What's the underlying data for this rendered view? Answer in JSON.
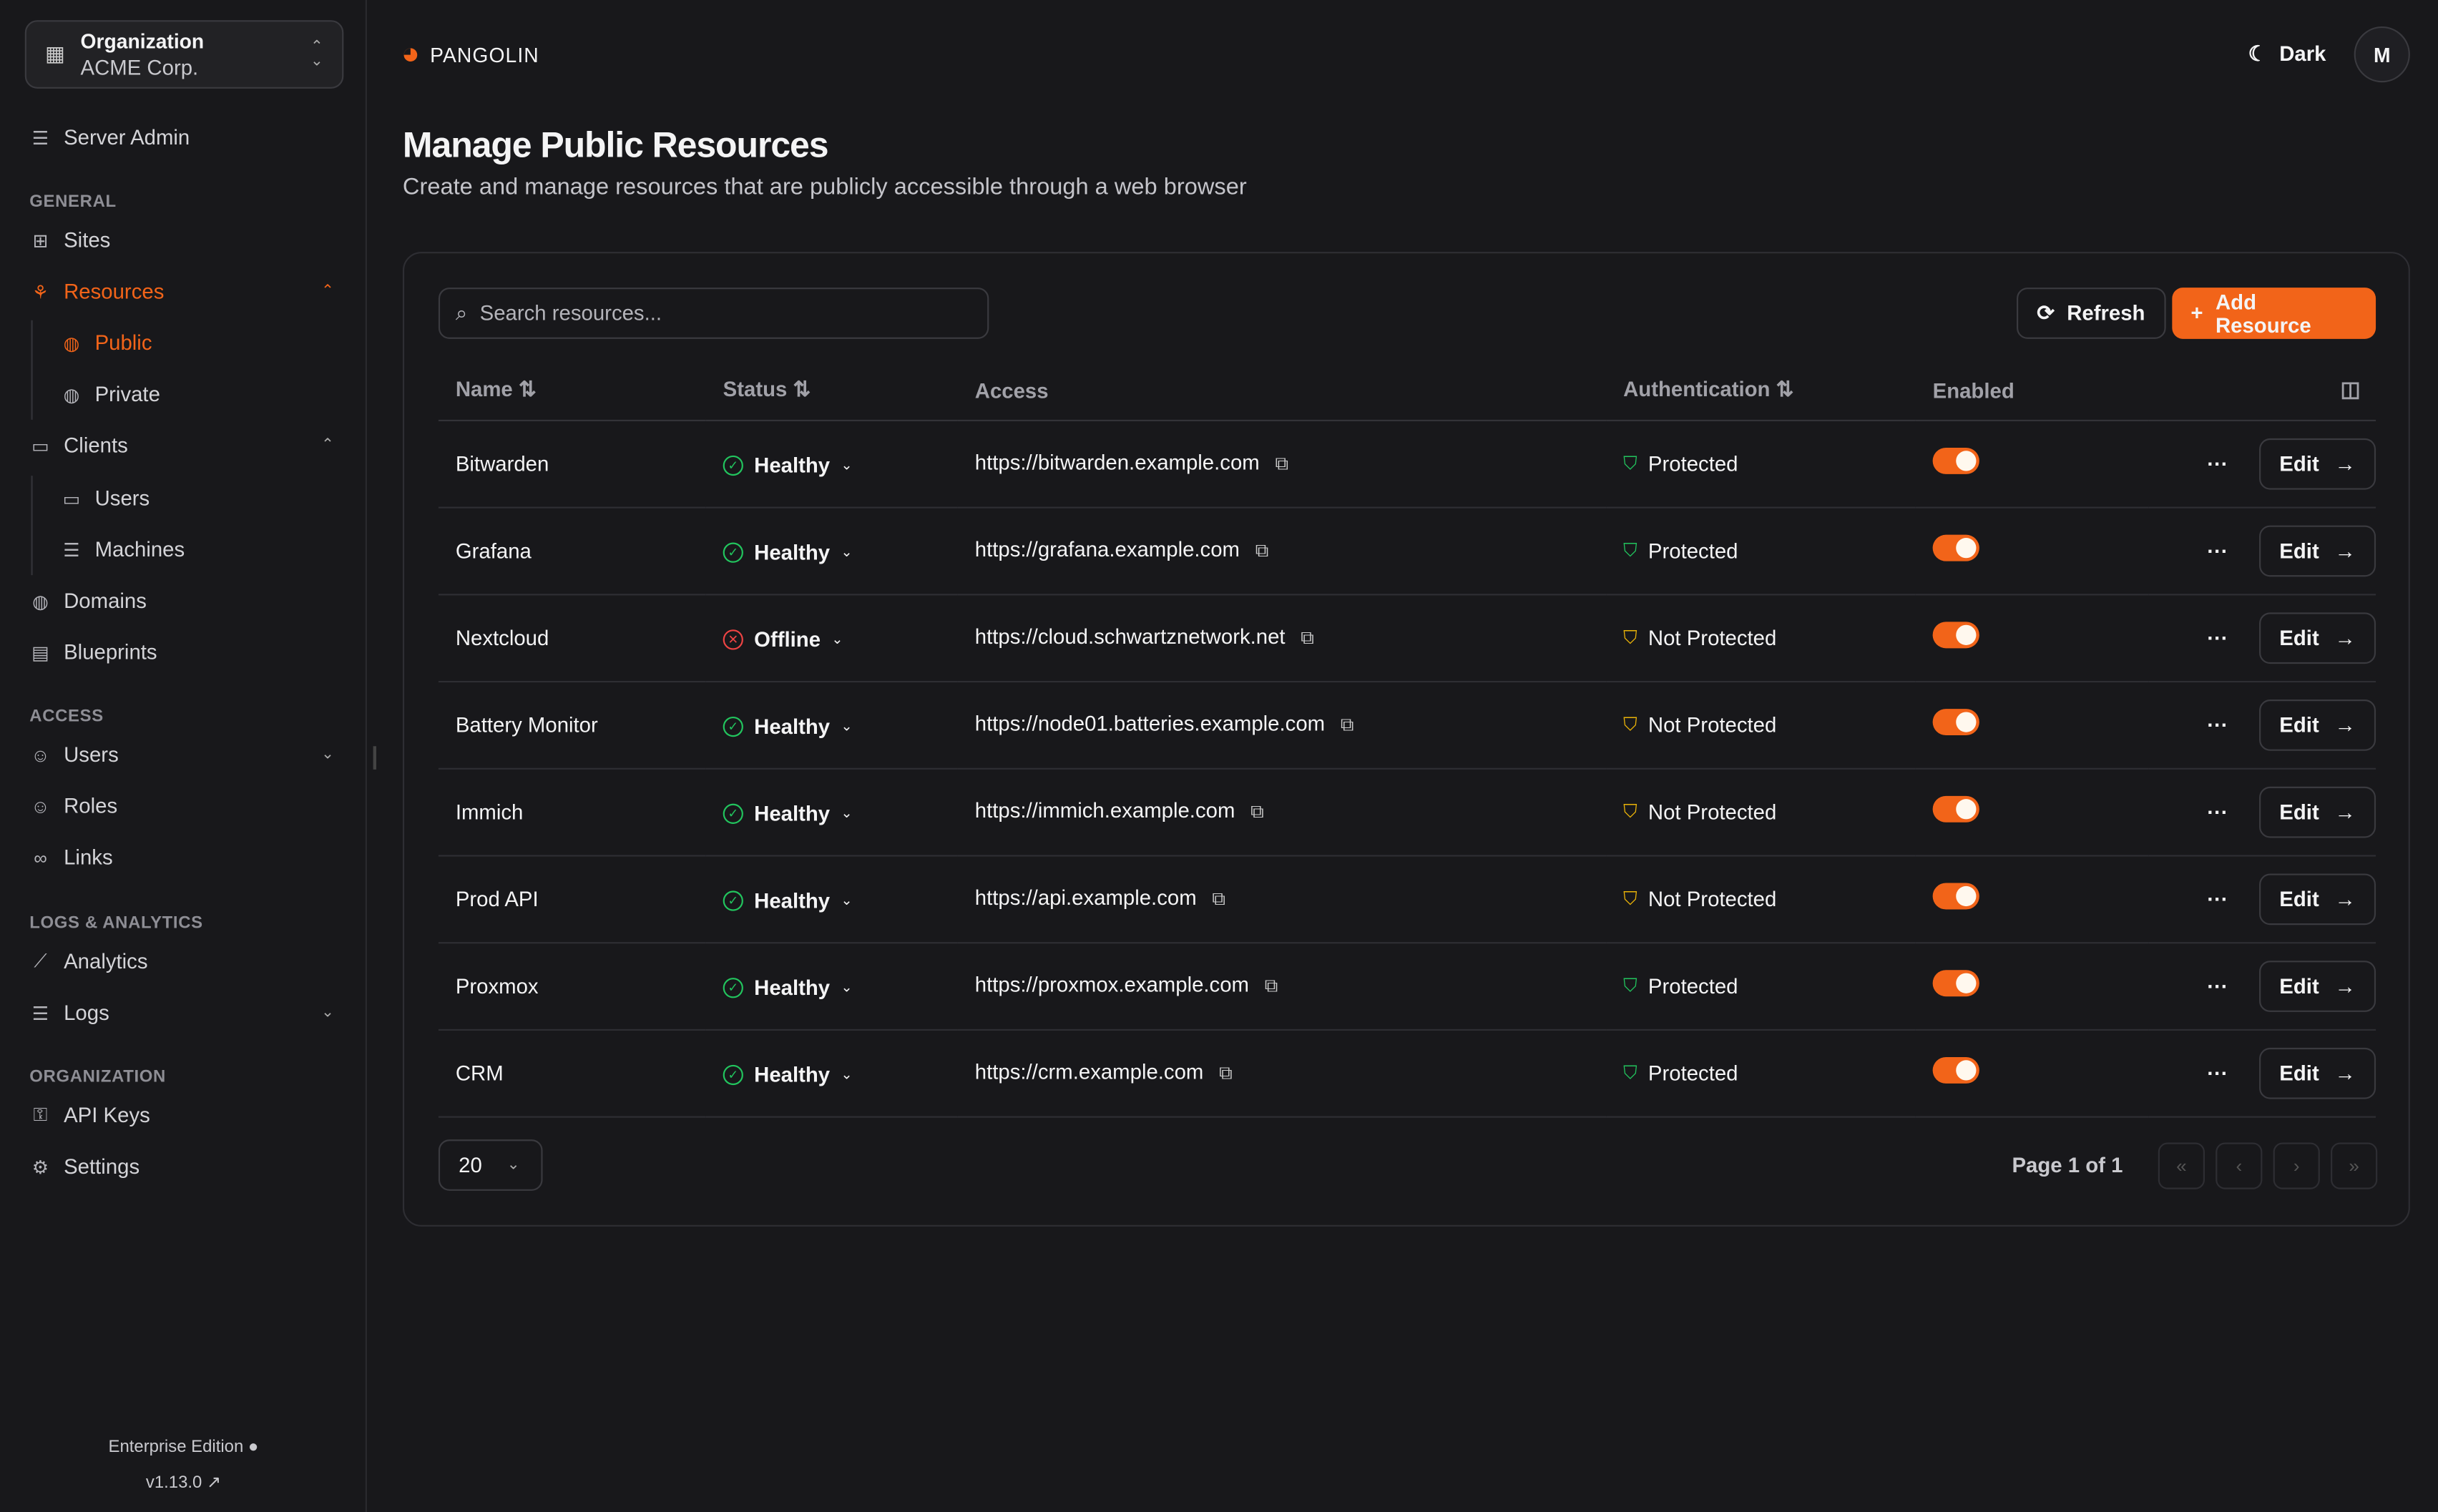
{
  "org": {
    "label": "Organization",
    "name": "ACME Corp."
  },
  "sidebar": {
    "server_admin": "Server Admin",
    "sections": [
      "GENERAL",
      "ACCESS",
      "LOGS & ANALYTICS",
      "ORGANIZATION"
    ],
    "items": {
      "sites": "Sites",
      "resources": "Resources",
      "public": "Public",
      "private": "Private",
      "clients": "Clients",
      "users_c": "Users",
      "machines": "Machines",
      "domains": "Domains",
      "blueprints": "Blueprints",
      "users": "Users",
      "roles": "Roles",
      "links": "Links",
      "analytics": "Analytics",
      "logs": "Logs",
      "api_keys": "API Keys",
      "settings": "Settings"
    },
    "edition": "Enterprise Edition",
    "version": "v1.13.0"
  },
  "header": {
    "brand": "PANGOLIN",
    "theme": "Dark",
    "avatar": "M"
  },
  "page": {
    "title": "Manage Public Resources",
    "subtitle": "Create and manage resources that are publicly accessible through a web browser"
  },
  "toolbar": {
    "search_placeholder": "Search resources...",
    "refresh": "Refresh",
    "add": "Add Resource"
  },
  "table": {
    "headers": [
      "Name",
      "Status",
      "Access",
      "Authentication",
      "Enabled"
    ],
    "rows": [
      {
        "name": "Bitwarden",
        "status": "Healthy",
        "access": "https://bitwarden.example.com",
        "auth": "Protected",
        "enabled": true
      },
      {
        "name": "Grafana",
        "status": "Healthy",
        "access": "https://grafana.example.com",
        "auth": "Protected",
        "enabled": true
      },
      {
        "name": "Nextcloud",
        "status": "Offline",
        "access": "https://cloud.schwartznetwork.net",
        "auth": "Not Protected",
        "enabled": true
      },
      {
        "name": "Battery Monitor",
        "status": "Healthy",
        "access": "https://node01.batteries.example.com",
        "auth": "Not Protected",
        "enabled": true
      },
      {
        "name": "Immich",
        "status": "Healthy",
        "access": "https://immich.example.com",
        "auth": "Not Protected",
        "enabled": true
      },
      {
        "name": "Prod API",
        "status": "Healthy",
        "access": "https://api.example.com",
        "auth": "Not Protected",
        "enabled": true
      },
      {
        "name": "Proxmox",
        "status": "Healthy",
        "access": "https://proxmox.example.com",
        "auth": "Protected",
        "enabled": true
      },
      {
        "name": "CRM",
        "status": "Healthy",
        "access": "https://crm.example.com",
        "auth": "Protected",
        "enabled": true
      }
    ],
    "edit": "Edit"
  },
  "pagination": {
    "page_size": "20",
    "info": "Page 1 of 1"
  },
  "colors": {
    "accent": "#f26419",
    "healthy": "#22c55e",
    "offline": "#ef4444",
    "warning": "#eab308"
  }
}
